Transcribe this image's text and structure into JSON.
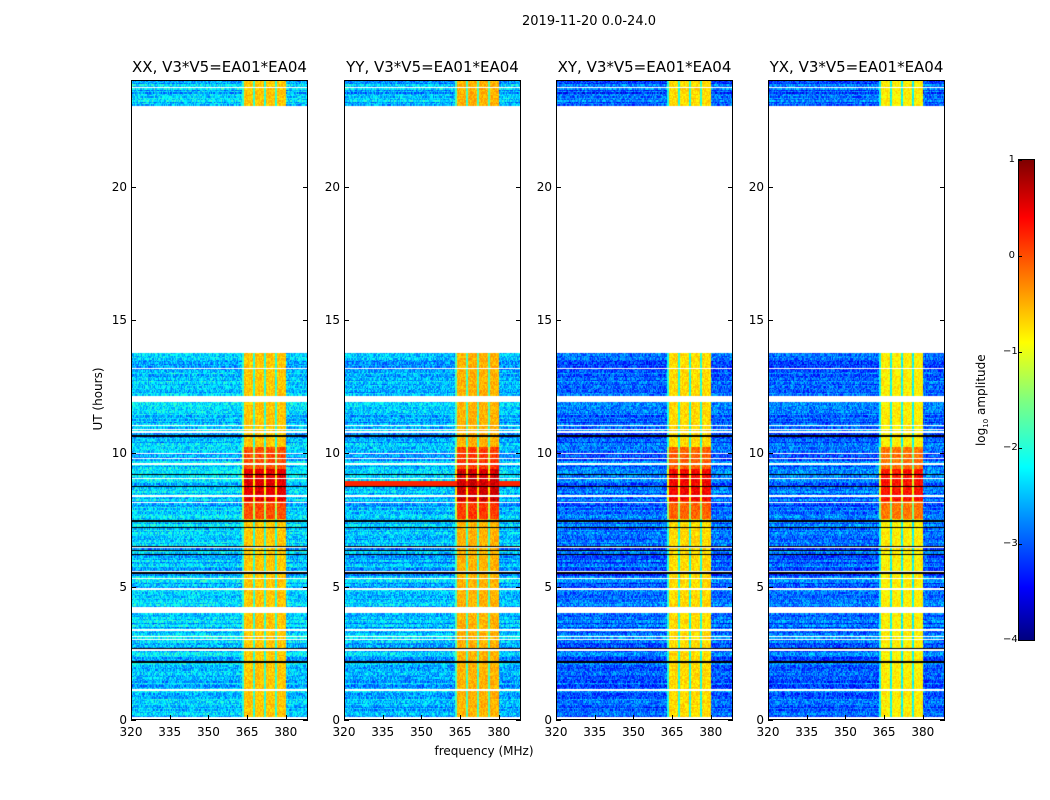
{
  "chart_data": {
    "type": "heatmap",
    "title": "2019-11-20 0.0-24.0",
    "xlabel": "frequency (MHz)",
    "ylabel": "UT (hours)",
    "xlim": [
      320,
      388.6
    ],
    "ylim": [
      0,
      24
    ],
    "xticks": [
      "320",
      "335",
      "350",
      "365",
      "380"
    ],
    "xtick_values": [
      320,
      335,
      350,
      365,
      380
    ],
    "yticks": [
      "0",
      "5",
      "10",
      "15",
      "20"
    ],
    "ytick_values": [
      0,
      5,
      10,
      15,
      20
    ],
    "panels": [
      {
        "title": "XX, V3*V5=EA01*EA04",
        "baseline": -2.4,
        "band_level": -0.6,
        "rfi_line": false
      },
      {
        "title": "YY, V3*V5=EA01*EA04",
        "baseline": -2.5,
        "band_level": -0.5,
        "rfi_line": true
      },
      {
        "title": "XY, V3*V5=EA01*EA04",
        "baseline": -2.9,
        "band_level": -0.7,
        "rfi_line": false
      },
      {
        "title": "YX, V3*V5=EA01*EA04",
        "baseline": -2.9,
        "band_level": -0.8,
        "rfi_line": false
      }
    ],
    "rfi_band_mhz": [
      363,
      380
    ],
    "flagged_hours": [
      [
        13.75,
        22.7
      ],
      [
        3.95,
        4.2
      ],
      [
        11.9,
        12.1
      ]
    ],
    "strong_rfi_hours": [
      7.5,
      10.2
    ],
    "colorbar": {
      "label": "log₁₀ amplitude",
      "label_main": "log",
      "label_sub": "10",
      "label_rest": " amplitude",
      "range": [
        -4,
        1
      ],
      "ticks": [
        "1",
        "0",
        "−1",
        "−2",
        "−3",
        "−4"
      ],
      "tick_values": [
        1,
        0,
        -1,
        -2,
        -3,
        -4
      ],
      "colormap": "jet"
    }
  }
}
